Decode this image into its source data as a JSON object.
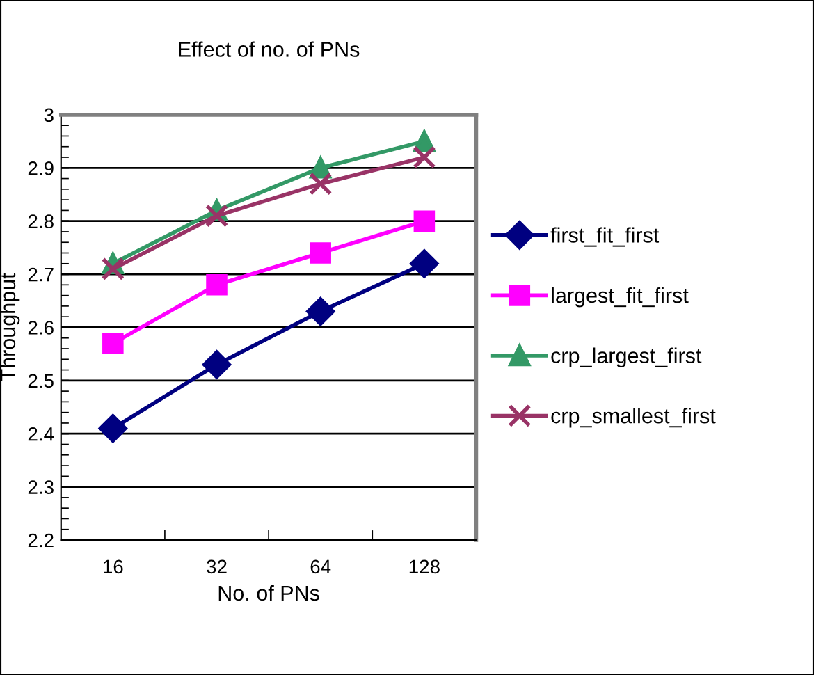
{
  "chart_data": {
    "type": "line",
    "title": "Effect of no. of PNs",
    "xlabel": "No. of PNs",
    "ylabel": "Throughput",
    "categories": [
      "16",
      "32",
      "64",
      "128"
    ],
    "series": [
      {
        "name": "first_fit_first",
        "color": "#000080",
        "marker": "diamond",
        "values": [
          2.41,
          2.53,
          2.63,
          2.72
        ]
      },
      {
        "name": "largest_fit_first",
        "color": "#ff00ff",
        "marker": "square",
        "values": [
          2.57,
          2.68,
          2.74,
          2.8
        ]
      },
      {
        "name": "crp_largest_first",
        "color": "#339966",
        "marker": "triangle",
        "values": [
          2.72,
          2.82,
          2.9,
          2.95
        ]
      },
      {
        "name": "crp_smallest_first",
        "color": "#993366",
        "marker": "cross",
        "values": [
          2.71,
          2.81,
          2.87,
          2.92
        ]
      }
    ],
    "ylim": [
      2.2,
      3.0
    ],
    "yticks": [
      2.2,
      2.3,
      2.4,
      2.5,
      2.6,
      2.7,
      2.8,
      2.9,
      3
    ],
    "grid": "y",
    "legend": "right"
  }
}
